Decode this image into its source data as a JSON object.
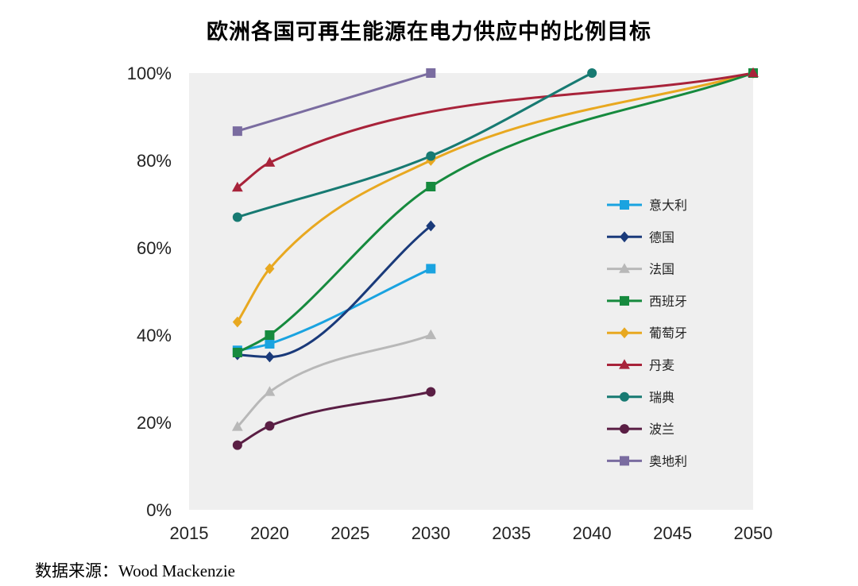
{
  "chart_data": {
    "type": "line",
    "title": "欧洲各国可再生能源在电力供应中的比例目标",
    "xlabel": "",
    "ylabel": "",
    "xlim": [
      2015,
      2050
    ],
    "ylim": [
      0,
      100
    ],
    "xticks": [
      2015,
      2020,
      2025,
      2030,
      2035,
      2040,
      2045,
      2050
    ],
    "yticks": [
      0,
      20,
      40,
      60,
      80,
      100
    ],
    "ytick_labels": [
      "0%",
      "20%",
      "40%",
      "60%",
      "80%",
      "100%"
    ],
    "legend_position": "right",
    "series": [
      {
        "name": "意大利",
        "color": "#1aa3e0",
        "marker": "square",
        "x": [
          2018,
          2020,
          2030
        ],
        "values": [
          36.5,
          38,
          55.2
        ]
      },
      {
        "name": "德国",
        "color": "#1a3a7a",
        "marker": "diamond",
        "x": [
          2018,
          2020,
          2030
        ],
        "values": [
          35.5,
          35,
          65
        ]
      },
      {
        "name": "法国",
        "color": "#b8b8b8",
        "marker": "triangle",
        "x": [
          2018,
          2020,
          2030
        ],
        "values": [
          19,
          27,
          40
        ]
      },
      {
        "name": "西班牙",
        "color": "#168a3e",
        "marker": "square",
        "x": [
          2018,
          2020,
          2030,
          2050
        ],
        "values": [
          36,
          40,
          74,
          100
        ]
      },
      {
        "name": "葡萄牙",
        "color": "#e8a820",
        "marker": "diamond",
        "x": [
          2018,
          2020,
          2030,
          2050
        ],
        "values": [
          43,
          55.2,
          80,
          100
        ]
      },
      {
        "name": "丹麦",
        "color": "#a8233a",
        "marker": "triangle",
        "x": [
          2018,
          2020,
          2050
        ],
        "values": [
          73.8,
          79.5,
          100
        ]
      },
      {
        "name": "瑞典",
        "color": "#177a72",
        "marker": "circle",
        "x": [
          2018,
          2030,
          2040
        ],
        "values": [
          67,
          81,
          100
        ]
      },
      {
        "name": "波兰",
        "color": "#5a1e44",
        "marker": "circle",
        "x": [
          2018,
          2020,
          2030
        ],
        "values": [
          14.8,
          19.2,
          27
        ]
      },
      {
        "name": "奥地利",
        "color": "#7a6ca0",
        "marker": "square",
        "x": [
          2018,
          2030
        ],
        "values": [
          86.7,
          100
        ]
      }
    ]
  },
  "source": "数据来源：Wood Mackenzie"
}
